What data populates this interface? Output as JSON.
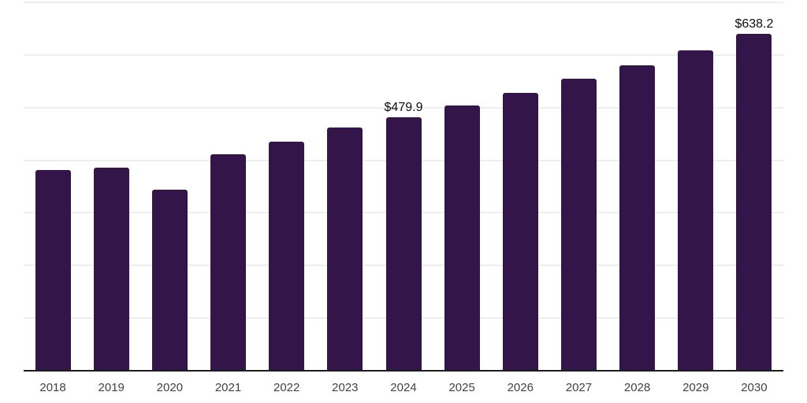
{
  "chart_data": {
    "type": "bar",
    "title": "",
    "xlabel": "",
    "ylabel": "",
    "categories": [
      "2018",
      "2019",
      "2020",
      "2021",
      "2022",
      "2023",
      "2024",
      "2025",
      "2026",
      "2027",
      "2028",
      "2029",
      "2030"
    ],
    "values": [
      380,
      385,
      343,
      410,
      434,
      461,
      479.9,
      503,
      526,
      553,
      579,
      608,
      638.2
    ],
    "annotations": [
      {
        "category": "2024",
        "label": "$479.9"
      },
      {
        "category": "2030",
        "label": "$638.2"
      }
    ],
    "ylim": [
      0,
      700
    ],
    "ytick_interval": 100,
    "grid": "horizontal-only",
    "y_tick_labels_shown": false,
    "legend": "none",
    "colors": {
      "bar": "#331549",
      "gridline": "#eeeeee",
      "axis_line": "#1c1c1c",
      "tick_label": "#424242",
      "annotation_text": "#0d0d0d",
      "background": "#ffffff"
    }
  }
}
